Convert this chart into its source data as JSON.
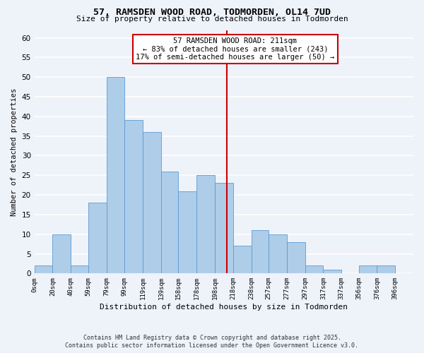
{
  "title": "57, RAMSDEN WOOD ROAD, TODMORDEN, OL14 7UD",
  "subtitle": "Size of property relative to detached houses in Todmorden",
  "xlabel": "Distribution of detached houses by size in Todmorden",
  "ylabel": "Number of detached properties",
  "bin_labels": [
    "0sqm",
    "20sqm",
    "40sqm",
    "59sqm",
    "79sqm",
    "99sqm",
    "119sqm",
    "139sqm",
    "158sqm",
    "178sqm",
    "198sqm",
    "218sqm",
    "238sqm",
    "257sqm",
    "277sqm",
    "297sqm",
    "317sqm",
    "337sqm",
    "356sqm",
    "376sqm",
    "396sqm"
  ],
  "bin_lefts": [
    0,
    20,
    40,
    59,
    79,
    99,
    119,
    139,
    158,
    178,
    198,
    218,
    238,
    257,
    277,
    297,
    317,
    337,
    356,
    376,
    396
  ],
  "bar_values": [
    2,
    10,
    2,
    18,
    50,
    39,
    36,
    26,
    21,
    25,
    23,
    7,
    11,
    10,
    8,
    2,
    1,
    0,
    2,
    2,
    0
  ],
  "bar_color": "#aecde8",
  "bar_edge_color": "#5b9bd5",
  "vline_x": 211,
  "vline_color": "#cc0000",
  "annotation_title": "57 RAMSDEN WOOD ROAD: 211sqm",
  "annotation_line1": "← 83% of detached houses are smaller (243)",
  "annotation_line2": "17% of semi-detached houses are larger (50) →",
  "annotation_box_color": "#cc0000",
  "ylim": [
    0,
    62
  ],
  "yticks": [
    0,
    5,
    10,
    15,
    20,
    25,
    30,
    35,
    40,
    45,
    50,
    55,
    60
  ],
  "footer_line1": "Contains HM Land Registry data © Crown copyright and database right 2025.",
  "footer_line2": "Contains public sector information licensed under the Open Government Licence v3.0.",
  "bg_color": "#eef2f9",
  "plot_bg_color": "#eef2f9",
  "grid_color": "#ffffff",
  "xlim_max": 416
}
